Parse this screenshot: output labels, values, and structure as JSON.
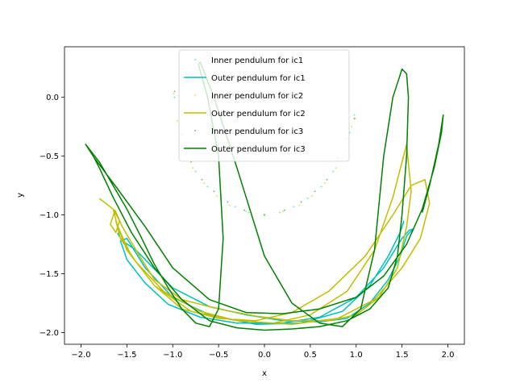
{
  "chart_data": {
    "type": "line",
    "title": "",
    "xlabel": "x",
    "ylabel": "y",
    "xlim": [
      -2.18,
      2.18
    ],
    "ylim": [
      -2.1,
      0.43
    ],
    "xticks": [
      -2.0,
      -1.5,
      -1.0,
      -0.5,
      0.0,
      0.5,
      1.0,
      1.5,
      2.0
    ],
    "xtick_labels": [
      "−2.0",
      "−1.5",
      "−1.0",
      "−0.5",
      "0.0",
      "0.5",
      "1.0",
      "1.5",
      "2.0"
    ],
    "yticks": [
      0.0,
      -0.5,
      -1.0,
      -1.5,
      -2.0
    ],
    "ytick_labels": [
      "0.0",
      "−0.5",
      "−1.0",
      "−1.5",
      "−2.0"
    ],
    "grid": false,
    "legend_position": "top-center",
    "series": [
      {
        "name": "Inner pendulum for ic1",
        "style": "points",
        "color": "#00bfbf",
        "x": [
          -0.98,
          -0.93,
          -0.85,
          -0.75,
          -0.62,
          -0.47,
          -0.32,
          -0.17,
          0.0,
          0.17,
          0.32,
          0.47,
          0.62,
          0.75,
          0.85,
          0.93,
          0.98
        ],
        "y": [
          0.0,
          -0.25,
          -0.48,
          -0.63,
          -0.76,
          -0.86,
          -0.93,
          -0.98,
          -1.0,
          -0.98,
          -0.93,
          -0.86,
          -0.76,
          -0.63,
          -0.48,
          -0.3,
          -0.15
        ]
      },
      {
        "name": "Outer pendulum for ic1",
        "style": "line",
        "color": "#00bfbf",
        "x": [
          -1.57,
          -1.6,
          -1.55,
          -1.4,
          -1.25,
          -1.0,
          -0.6,
          -0.2,
          0.2,
          0.6,
          0.9,
          1.15,
          1.35,
          1.48,
          1.55,
          1.62,
          1.58,
          1.5,
          1.3,
          1.0,
          0.6,
          0.2,
          -0.3,
          -0.7,
          -1.05,
          -1.3,
          -1.5,
          -1.57,
          -1.5,
          -1.3,
          -1.0,
          -0.6,
          -0.1,
          0.4,
          0.85,
          1.15,
          1.35,
          1.48,
          1.52
        ],
        "y": [
          -1.14,
          -1.16,
          -1.22,
          -1.3,
          -1.42,
          -1.62,
          -1.78,
          -1.85,
          -1.9,
          -1.91,
          -1.88,
          -1.75,
          -1.55,
          -1.35,
          -1.18,
          -1.12,
          -1.13,
          -1.2,
          -1.45,
          -1.7,
          -1.87,
          -1.92,
          -1.92,
          -1.87,
          -1.76,
          -1.58,
          -1.38,
          -1.22,
          -1.2,
          -1.45,
          -1.7,
          -1.85,
          -1.93,
          -1.92,
          -1.82,
          -1.6,
          -1.35,
          -1.15,
          -1.05
        ]
      },
      {
        "name": "Inner pendulum for ic2",
        "style": "points",
        "color": "#bfbf00",
        "x": [
          -0.99,
          -0.95,
          -0.88,
          -0.78,
          -0.66,
          -0.52,
          -0.38,
          -0.2,
          0.0,
          0.2,
          0.38,
          0.52,
          0.66,
          0.78,
          0.88,
          0.95,
          0.99
        ],
        "y": [
          0.03,
          -0.2,
          -0.45,
          -0.6,
          -0.73,
          -0.84,
          -0.92,
          -0.97,
          -1.0,
          -0.97,
          -0.92,
          -0.84,
          -0.73,
          -0.6,
          -0.45,
          -0.25,
          -0.18
        ]
      },
      {
        "name": "Outer pendulum for ic2",
        "style": "line",
        "color": "#bfbf00",
        "x": [
          -1.8,
          -1.65,
          -1.58,
          -1.62,
          -1.68,
          -1.63,
          -1.55,
          -1.4,
          -1.2,
          -0.9,
          -0.5,
          -0.1,
          0.3,
          0.7,
          1.0,
          1.25,
          1.45,
          1.55,
          1.6,
          1.55,
          1.4,
          1.2,
          0.9,
          0.5,
          0.1,
          -0.3,
          -0.7,
          -1.1,
          -1.4,
          -1.57,
          -1.62,
          -1.5,
          -1.2,
          -0.8,
          -0.3,
          0.3,
          0.8,
          1.2,
          1.5,
          1.7,
          1.8,
          1.75,
          1.6,
          1.4,
          1.1,
          0.7,
          0.3,
          -0.1,
          -0.5,
          -0.9,
          -1.2,
          -1.45,
          -1.6,
          -1.65
        ],
        "y": [
          -0.86,
          -0.95,
          -1.05,
          -1.15,
          -1.08,
          -0.96,
          -1.1,
          -1.3,
          -1.55,
          -1.72,
          -1.8,
          -1.86,
          -1.9,
          -1.9,
          -1.85,
          -1.7,
          -1.45,
          -1.1,
          -0.8,
          -0.4,
          -0.85,
          -1.3,
          -1.65,
          -1.85,
          -1.92,
          -1.9,
          -1.82,
          -1.65,
          -1.4,
          -1.2,
          -1.05,
          -1.3,
          -1.6,
          -1.82,
          -1.9,
          -1.93,
          -1.88,
          -1.72,
          -1.45,
          -1.2,
          -0.9,
          -0.7,
          -0.75,
          -1.0,
          -1.35,
          -1.65,
          -1.83,
          -1.9,
          -1.88,
          -1.8,
          -1.6,
          -1.35,
          -1.1,
          -0.95
        ]
      },
      {
        "name": "Inner pendulum for ic3",
        "style": "points",
        "color": "#008000",
        "x": [
          -0.98,
          -0.9,
          -0.8,
          -0.68,
          -0.55,
          -0.4,
          -0.22,
          0.0,
          0.22,
          0.4,
          0.55,
          0.68,
          0.8,
          0.9,
          0.98
        ],
        "y": [
          0.05,
          -0.32,
          -0.55,
          -0.7,
          -0.8,
          -0.89,
          -0.96,
          -1.0,
          -0.96,
          -0.89,
          -0.8,
          -0.7,
          -0.52,
          -0.35,
          -0.18
        ]
      },
      {
        "name": "Outer pendulum for ic3",
        "style": "line",
        "color": "#008000",
        "x": [
          -1.95,
          -1.8,
          -1.65,
          -1.5,
          -1.35,
          -1.2,
          -1.05,
          -0.9,
          -0.75,
          -0.6,
          -0.5,
          -0.45,
          -0.5,
          -0.62,
          -0.72,
          -0.7,
          -0.55,
          -0.3,
          0.0,
          0.3,
          0.6,
          0.85,
          1.05,
          1.2,
          1.3,
          1.4,
          1.5,
          1.55,
          1.57,
          1.55,
          1.5,
          1.45,
          1.35,
          1.15,
          0.9,
          0.6,
          0.3,
          0.0,
          -0.3,
          -0.6,
          -0.9,
          -1.2,
          -1.45,
          -1.65,
          -1.8,
          -1.9,
          -1.95,
          -1.85,
          -1.6,
          -1.3,
          -1.0,
          -0.6,
          -0.2,
          0.2,
          0.6,
          1.0,
          1.3,
          1.55,
          1.72,
          1.85,
          1.93,
          1.95,
          1.9,
          1.8,
          1.72
        ],
        "y": [
          -0.4,
          -0.55,
          -0.75,
          -0.95,
          -1.18,
          -1.42,
          -1.62,
          -1.8,
          -1.92,
          -1.95,
          -1.8,
          -1.2,
          -0.5,
          0.0,
          0.28,
          0.3,
          0.0,
          -0.6,
          -1.35,
          -1.75,
          -1.92,
          -1.95,
          -1.8,
          -1.3,
          -0.5,
          0.0,
          0.24,
          0.2,
          0.0,
          -0.5,
          -1.0,
          -1.35,
          -1.62,
          -1.8,
          -1.9,
          -1.95,
          -1.97,
          -1.98,
          -1.96,
          -1.9,
          -1.72,
          -1.45,
          -1.15,
          -0.85,
          -0.6,
          -0.45,
          -0.4,
          -0.52,
          -0.78,
          -1.1,
          -1.45,
          -1.72,
          -1.83,
          -1.84,
          -1.8,
          -1.7,
          -1.52,
          -1.25,
          -0.95,
          -0.6,
          -0.3,
          -0.15,
          -0.4,
          -0.75,
          -0.98
        ]
      }
    ]
  }
}
